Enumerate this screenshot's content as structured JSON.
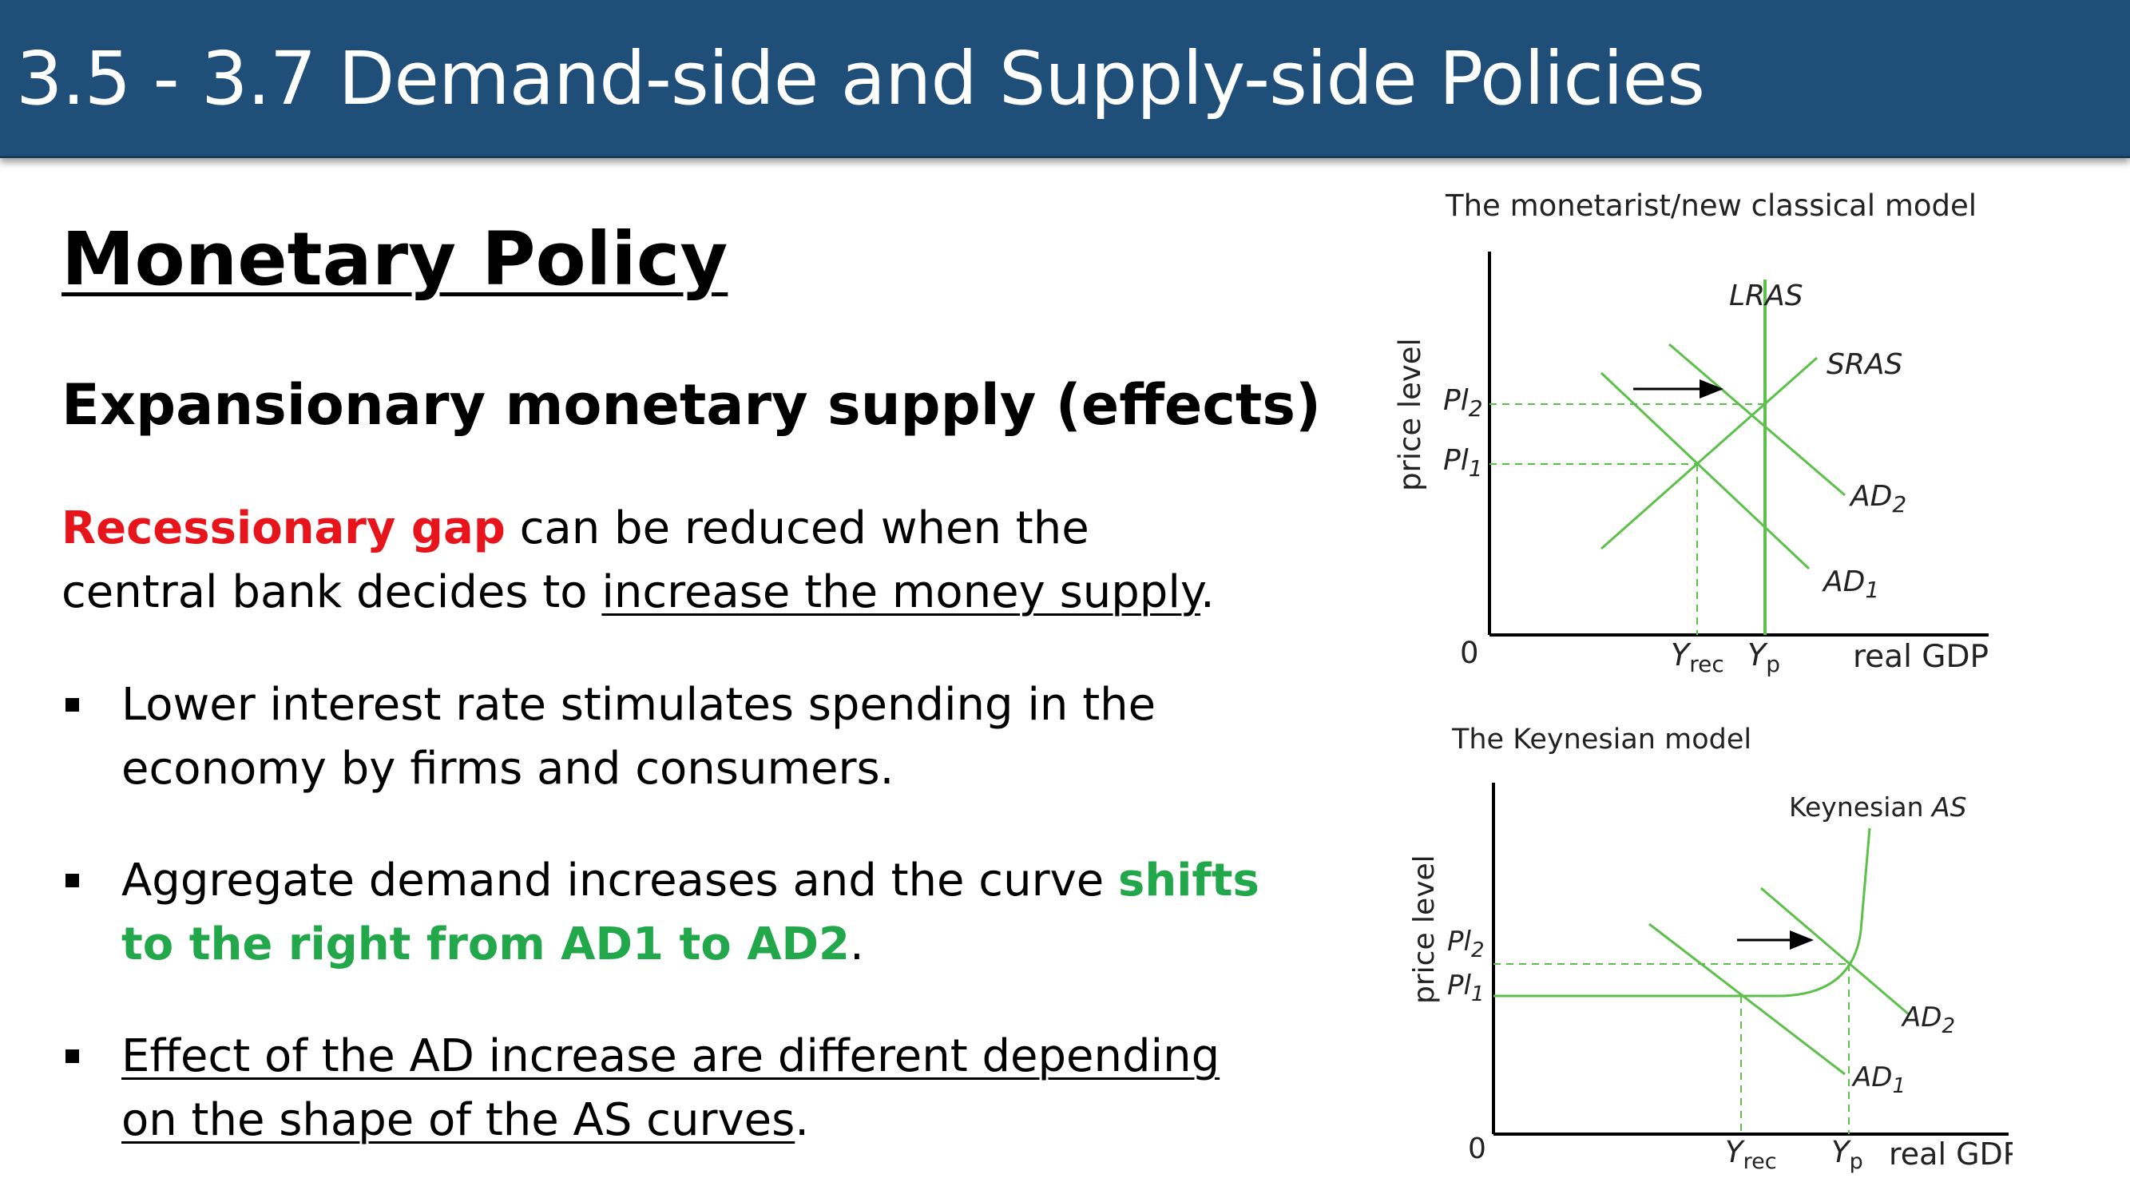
{
  "slide": {
    "title": "3.5 - 3.7 Demand-side and Supply-side Policies",
    "heading": "Monetary Policy",
    "subheading": "Expansionary monetary supply (effects)",
    "intro": {
      "highlight": "Recessionary gap",
      "rest_line1": " can be reduced when the",
      "line2_prefix": "central bank decides to ",
      "line2_underlined": "increase the money supply",
      "line2_suffix": "."
    },
    "bullets": [
      {
        "line1": "Lower interest rate stimulates spending in the",
        "line2": "economy by firms and consumers."
      },
      {
        "line1_prefix": "Aggregate demand increases and the curve ",
        "line1_green": "shifts",
        "line2_green": "to the right from AD1 to AD2",
        "line2_suffix": "."
      },
      {
        "line1": "Effect of the AD increase are different depending",
        "line2_underlined": "on the shape of the AS curves",
        "line2_suffix": "."
      }
    ]
  },
  "colors": {
    "banner": "#1f4e79",
    "highlight_red": "#e8141c",
    "highlight_green": "#22a84a",
    "curve_green": "#5cc04a"
  },
  "diagrams": {
    "monetarist": {
      "title": "The monetarist/new classical model",
      "y_axis": "price level",
      "x_axis": "real GDP",
      "origin": "0",
      "curves": {
        "lras": "LRAS",
        "sras": "SRAS",
        "ad2_main": "AD",
        "ad2_sub": "2",
        "ad1_main": "AD",
        "ad1_sub": "1"
      },
      "y_ticks": {
        "pl2_main": "Pl",
        "pl2_sub": "2",
        "pl1_main": "Pl",
        "pl1_sub": "1"
      },
      "x_ticks": {
        "yrec_main": "Y",
        "yrec_sub": "rec",
        "yp_main": "Y",
        "yp_sub": "p"
      }
    },
    "keynesian": {
      "title": "The Keynesian model",
      "y_axis": "price level",
      "x_axis": "real GDP",
      "origin": "0",
      "curves": {
        "as_prefix": "Keynesian ",
        "as_italic": "AS",
        "ad2_main": "AD",
        "ad2_sub": "2",
        "ad1_main": "AD",
        "ad1_sub": "1"
      },
      "y_ticks": {
        "pl2_main": "Pl",
        "pl2_sub": "2",
        "pl1_main": "Pl",
        "pl1_sub": "1"
      },
      "x_ticks": {
        "yrec_main": "Y",
        "yrec_sub": "rec",
        "yp_main": "Y",
        "yp_sub": "p"
      }
    }
  }
}
